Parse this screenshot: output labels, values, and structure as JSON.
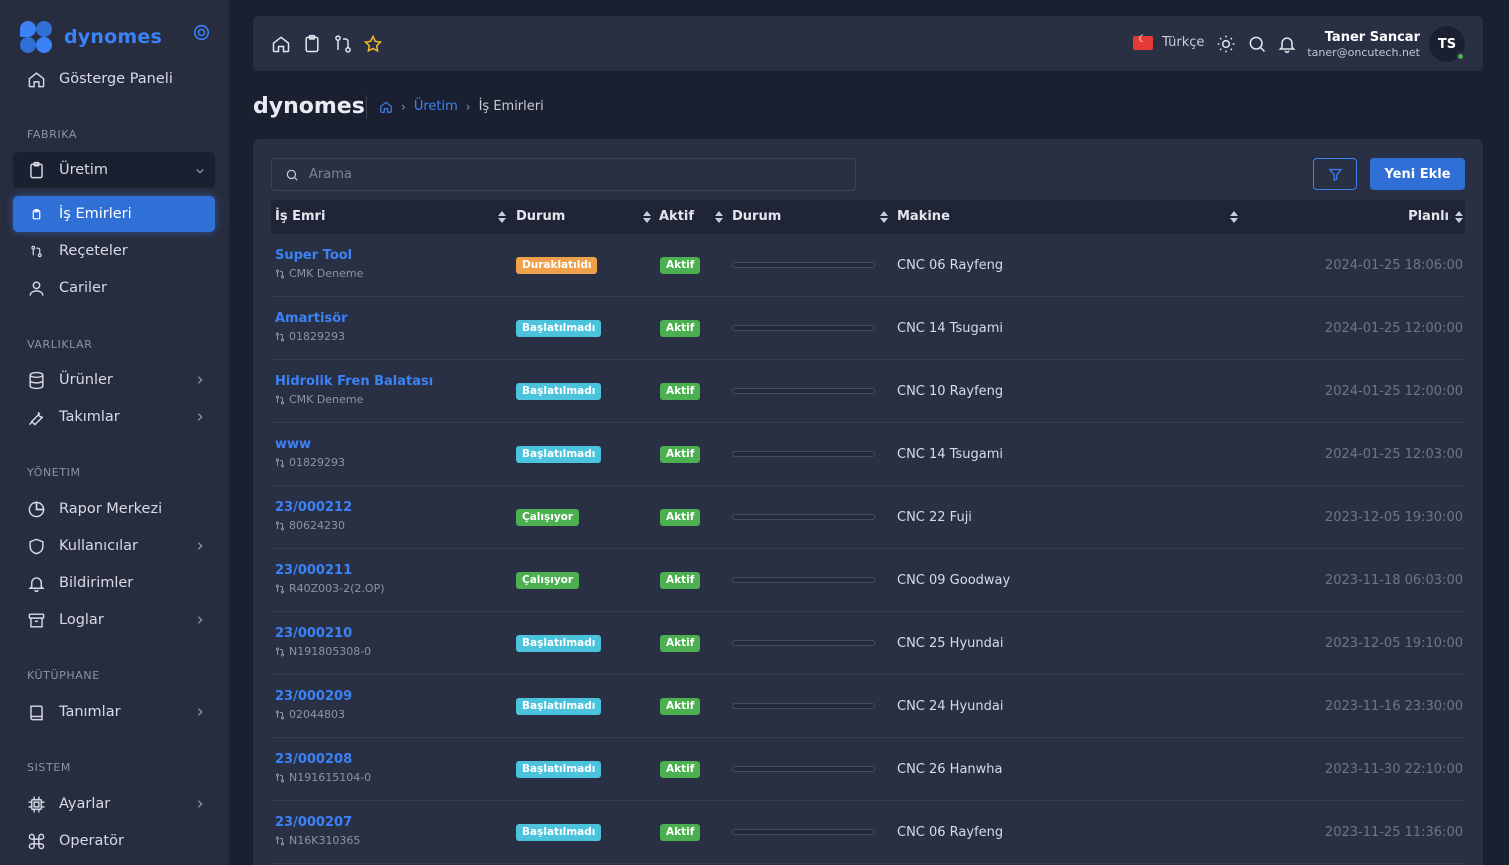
{
  "brand": {
    "name": "dynomes"
  },
  "sidebar": {
    "dashboard": "Gösterge Paneli",
    "sections": {
      "fabrika": "FABRIKA",
      "varliklar": "VARLIKLAR",
      "yonetim": "YÖNETIM",
      "kutuphane": "KÜTÜPHANE",
      "sistem": "SISTEM"
    },
    "uretim": "Üretim",
    "is_emirleri": "İş Emirleri",
    "receteler": "Reçeteler",
    "cariler": "Cariler",
    "urunler": "Ürünler",
    "takimlar": "Takımlar",
    "rapor_merkezi": "Rapor Merkezi",
    "kullanicilar": "Kullanıcılar",
    "bildirimler": "Bildirimler",
    "loglar": "Loglar",
    "tanimlar": "Tanımlar",
    "ayarlar": "Ayarlar",
    "operator": "Operatör"
  },
  "topbar": {
    "language": "Türkçe",
    "user_name": "Taner Sancar",
    "user_email": "taner@oncutech.net",
    "avatar_initials": "TS"
  },
  "page": {
    "title": "dynomes",
    "breadcrumb_parent": "Üretim",
    "breadcrumb_current": "İş Emirleri"
  },
  "toolbar": {
    "search_placeholder": "Arama",
    "add_label": "Yeni Ekle"
  },
  "table": {
    "headers": {
      "work_order": "İş Emri",
      "status": "Durum",
      "active": "Aktif",
      "progress": "Durum",
      "machine": "Makine",
      "planned": "Planlı"
    },
    "rows": [
      {
        "name": "Super Tool",
        "sub": "CMK Deneme",
        "status": "Duraklatıldı",
        "status_type": "paused",
        "active": "Aktif",
        "progress": 0,
        "machine": "CNC 06 Rayfeng",
        "planned": "2024-01-25 18:06:00"
      },
      {
        "name": "Amartisör",
        "sub": "01829293",
        "status": "Başlatılmadı",
        "status_type": "notstarted",
        "active": "Aktif",
        "progress": 0,
        "machine": "CNC 14 Tsugami",
        "planned": "2024-01-25 12:00:00"
      },
      {
        "name": "Hidrolik Fren Balatası",
        "sub": "CMK Deneme",
        "status": "Başlatılmadı",
        "status_type": "notstarted",
        "active": "Aktif",
        "progress": 0,
        "machine": "CNC 10 Rayfeng",
        "planned": "2024-01-25 12:00:00"
      },
      {
        "name": "www",
        "sub": "01829293",
        "status": "Başlatılmadı",
        "status_type": "notstarted",
        "active": "Aktif",
        "progress": 0,
        "machine": "CNC 14 Tsugami",
        "planned": "2024-01-25 12:03:00"
      },
      {
        "name": "23/000212",
        "sub": "80624230",
        "status": "Çalışıyor",
        "status_type": "running",
        "active": "Aktif",
        "progress": 0,
        "machine": "CNC 22 Fuji",
        "planned": "2023-12-05 19:30:00"
      },
      {
        "name": "23/000211",
        "sub": "R40Z003-2(2.OP)",
        "status": "Çalışıyor",
        "status_type": "running",
        "active": "Aktif",
        "progress": 0,
        "machine": "CNC 09 Goodway",
        "planned": "2023-11-18 06:03:00"
      },
      {
        "name": "23/000210",
        "sub": "N191805308-0",
        "status": "Başlatılmadı",
        "status_type": "notstarted",
        "active": "Aktif",
        "progress": 0,
        "machine": "CNC 25 Hyundai",
        "planned": "2023-12-05 19:10:00"
      },
      {
        "name": "23/000209",
        "sub": "02044803",
        "status": "Başlatılmadı",
        "status_type": "notstarted",
        "active": "Aktif",
        "progress": 0,
        "machine": "CNC 24 Hyundai",
        "planned": "2023-11-16 23:30:00"
      },
      {
        "name": "23/000208",
        "sub": "N191615104-0",
        "status": "Başlatılmadı",
        "status_type": "notstarted",
        "active": "Aktif",
        "progress": 0,
        "machine": "CNC 26 Hanwha",
        "planned": "2023-11-30 22:10:00"
      },
      {
        "name": "23/000207",
        "sub": "N16K310365",
        "status": "Başlatılmadı",
        "status_type": "notstarted",
        "active": "Aktif",
        "progress": 0,
        "machine": "CNC 06 Rayfeng",
        "planned": "2023-11-25 11:36:00"
      }
    ]
  },
  "colors": {
    "accent": "#3b82f6",
    "paused": "#f0a04b",
    "notstarted": "#4cc3dc",
    "running": "#4caf50"
  }
}
